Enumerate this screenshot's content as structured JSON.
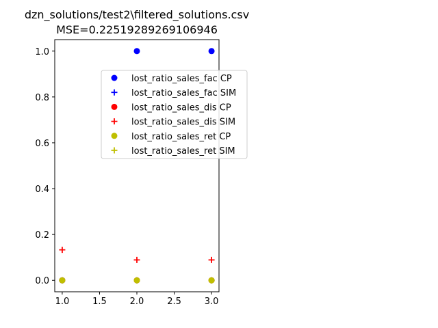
{
  "chart_data": {
    "type": "scatter",
    "title_line1": "dzn_solutions/test2\\filtered_solutions.csv",
    "title_line2": "MSE=0.22519289269106946",
    "xlabel": "",
    "ylabel": "",
    "xlim": [
      0.9,
      3.1
    ],
    "ylim": [
      -0.05,
      1.05
    ],
    "grid": false,
    "legend_placement": "upper-right-inset",
    "x_ticks": [
      1.0,
      1.5,
      2.0,
      2.5,
      3.0
    ],
    "x_tick_labels": [
      "1.0",
      "1.5",
      "2.0",
      "2.5",
      "3.0"
    ],
    "y_ticks": [
      0.0,
      0.2,
      0.4,
      0.6,
      0.8,
      1.0
    ],
    "y_tick_labels": [
      "0.0",
      "0.2",
      "0.4",
      "0.6",
      "0.8",
      "1.0"
    ],
    "series": [
      {
        "name": "lost_ratio_sales_fac CP",
        "marker": "circle",
        "color": "#0000ff",
        "x": [
          1,
          2,
          3
        ],
        "y": [
          0.0,
          1.0,
          1.0
        ]
      },
      {
        "name": "lost_ratio_sales_fac SIM",
        "marker": "plus",
        "color": "#0000ff",
        "x": [
          1,
          2,
          3
        ],
        "y": [
          0.0,
          0.0,
          0.0
        ]
      },
      {
        "name": "lost_ratio_sales_dis CP",
        "marker": "circle",
        "color": "#ff0000",
        "x": [
          1,
          2,
          3
        ],
        "y": [
          0.0,
          0.0,
          0.0
        ]
      },
      {
        "name": "lost_ratio_sales_dis SIM",
        "marker": "plus",
        "color": "#ff0000",
        "x": [
          1,
          2,
          3
        ],
        "y": [
          0.133,
          0.089,
          0.089
        ]
      },
      {
        "name": "lost_ratio_sales_ret CP",
        "marker": "circle",
        "color": "#bfbf00",
        "x": [
          1,
          2,
          3
        ],
        "y": [
          0.0,
          0.0,
          0.0
        ]
      },
      {
        "name": "lost_ratio_sales_ret SIM",
        "marker": "plus",
        "color": "#bfbf00",
        "x": [
          1,
          2,
          3
        ],
        "y": [
          0.0,
          0.0,
          0.0
        ]
      }
    ]
  }
}
